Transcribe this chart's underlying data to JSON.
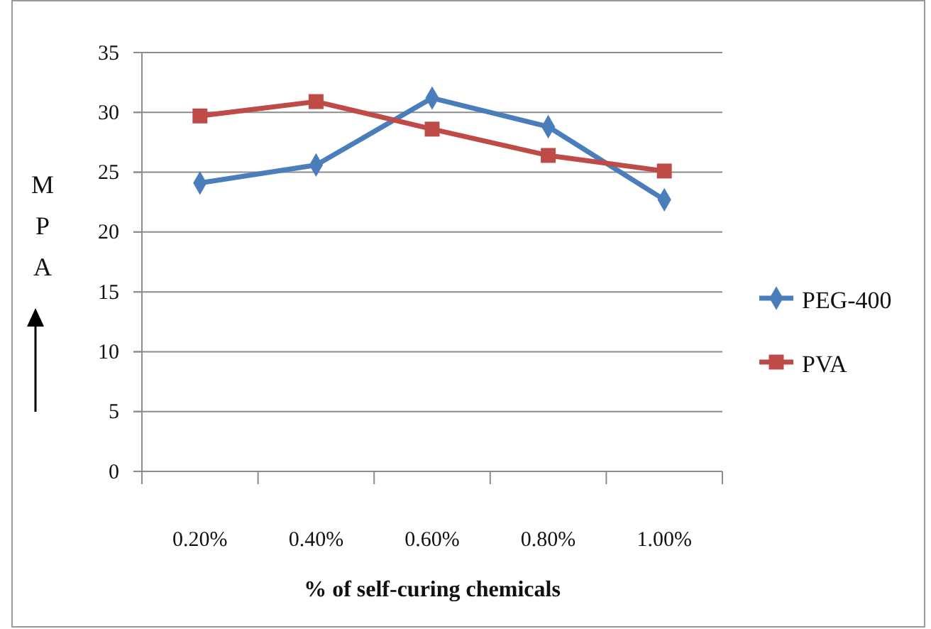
{
  "chart_data": {
    "type": "line",
    "xlabel": "% of self-curing chemicals",
    "ylabel": "MPA",
    "categories": [
      "0.20%",
      "0.40%",
      "0.60%",
      "0.80%",
      "1.00%"
    ],
    "series": [
      {
        "name": "PEG-400",
        "color": "#4a7ebb",
        "marker": "diamond",
        "values": [
          24.1,
          25.6,
          31.2,
          28.8,
          22.7
        ]
      },
      {
        "name": "PVA",
        "color": "#be4b48",
        "marker": "square",
        "values": [
          29.7,
          30.9,
          28.6,
          26.4,
          25.1
        ]
      }
    ],
    "ylim": [
      0,
      35
    ],
    "yticks": [
      0,
      5,
      10,
      15,
      20,
      25,
      30,
      35
    ],
    "grid": "y",
    "legend": "right"
  }
}
